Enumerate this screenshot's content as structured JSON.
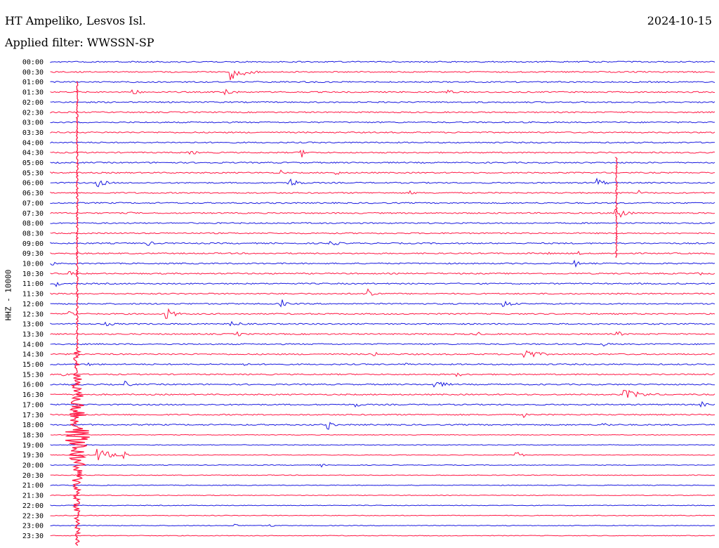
{
  "header": {
    "station": "HT Ampeliko, Lesvos Isl.",
    "filter_label": "Applied filter: WWSSN-SP",
    "date": "2024-10-15"
  },
  "chart_data": {
    "type": "line",
    "title": "HT Ampeliko, Lesvos Isl.",
    "subtitle": "Applied filter: WWSSN-SP",
    "ylabel": "HHZ - 10000",
    "colors": [
      "#1a1adf",
      "#ff1744"
    ],
    "rows": [
      "00:00",
      "00:30",
      "01:00",
      "01:30",
      "02:00",
      "02:30",
      "03:00",
      "03:30",
      "04:00",
      "04:30",
      "05:00",
      "05:30",
      "06:00",
      "06:30",
      "07:00",
      "07:30",
      "08:00",
      "08:30",
      "09:00",
      "09:30",
      "10:00",
      "10:30",
      "11:00",
      "11:30",
      "12:00",
      "12:30",
      "13:00",
      "13:30",
      "14:00",
      "14:30",
      "15:00",
      "15:30",
      "16:00",
      "16:30",
      "17:00",
      "17:30",
      "18:00",
      "18:30",
      "19:00",
      "19:30",
      "20:00",
      "20:30",
      "21:00",
      "21:30",
      "22:00",
      "22:30",
      "23:00",
      "23:30"
    ]
  }
}
